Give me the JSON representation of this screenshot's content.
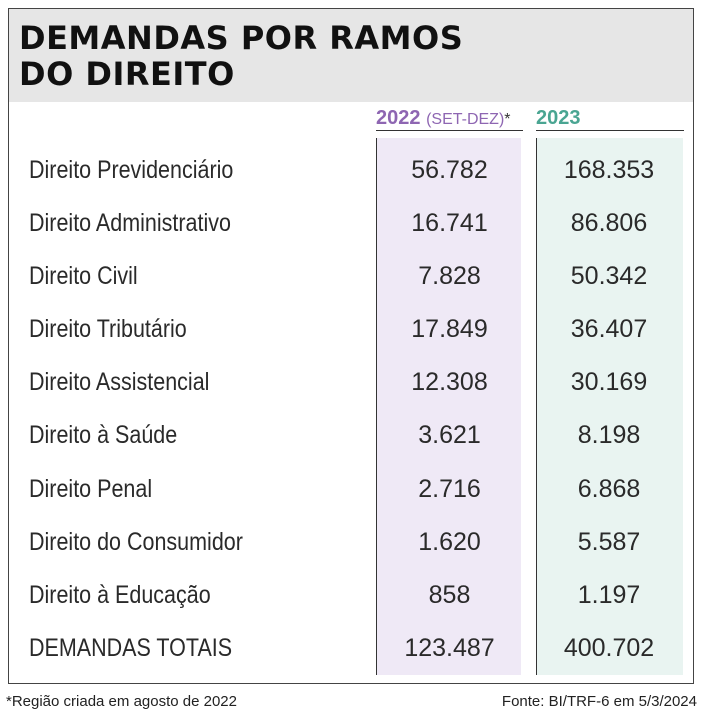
{
  "title_lines": [
    "DEMANDAS POR RAMOS",
    "DO DIREITO"
  ],
  "columns": {
    "y2022": {
      "year": "2022",
      "qualifier": "(SET-DEZ)",
      "marker": "*"
    },
    "y2023": {
      "year": "2023"
    }
  },
  "rows": [
    {
      "label": "Direito Previdenciário",
      "v2022": "56.782",
      "v2023": "168.353"
    },
    {
      "label": "Direito Administrativo",
      "v2022": "16.741",
      "v2023": "86.806"
    },
    {
      "label": "Direito Civil",
      "v2022": "7.828",
      "v2023": "50.342"
    },
    {
      "label": "Direito Tributário",
      "v2022": "17.849",
      "v2023": "36.407"
    },
    {
      "label": "Direito Assistencial",
      "v2022": "12.308",
      "v2023": "30.169"
    },
    {
      "label": "Direito à Saúde",
      "v2022": "3.621",
      "v2023": "8.198"
    },
    {
      "label": "Direito Penal",
      "v2022": "2.716",
      "v2023": "6.868"
    },
    {
      "label": "Direito do Consumidor",
      "v2022": "1.620",
      "v2023": "5.587"
    },
    {
      "label": "Direito à Educação",
      "v2022": "858",
      "v2023": "1.197"
    },
    {
      "label": "DEMANDAS TOTAIS",
      "v2022": "123.487",
      "v2023": "400.702"
    }
  ],
  "footnote": "*Região criada em agosto de 2022",
  "source": "Fonte: BI/TRF-6 em 5/3/2024",
  "colors": {
    "col_2022_header": "#8e66b2",
    "col_2022_bg": "#efe9f6",
    "col_2023_header": "#4aa592",
    "col_2023_bg": "#e9f4f1",
    "title_band": "#e6e6e6"
  },
  "chart_data": {
    "type": "table",
    "title": "DEMANDAS POR RAMOS DO DIREITO",
    "columns": [
      "",
      "2022 (SET-DEZ)*",
      "2023"
    ],
    "categories": [
      "Direito Previdenciário",
      "Direito Administrativo",
      "Direito Civil",
      "Direito Tributário",
      "Direito Assistencial",
      "Direito à Saúde",
      "Direito Penal",
      "Direito do Consumidor",
      "Direito à Educação",
      "DEMANDAS TOTAIS"
    ],
    "series": [
      {
        "name": "2022 (SET-DEZ)*",
        "values": [
          56782,
          16741,
          7828,
          17849,
          12308,
          3621,
          2716,
          1620,
          858,
          123487
        ]
      },
      {
        "name": "2023",
        "values": [
          168353,
          86806,
          50342,
          36407,
          30169,
          8198,
          6868,
          5587,
          1197,
          400702
        ]
      }
    ]
  }
}
